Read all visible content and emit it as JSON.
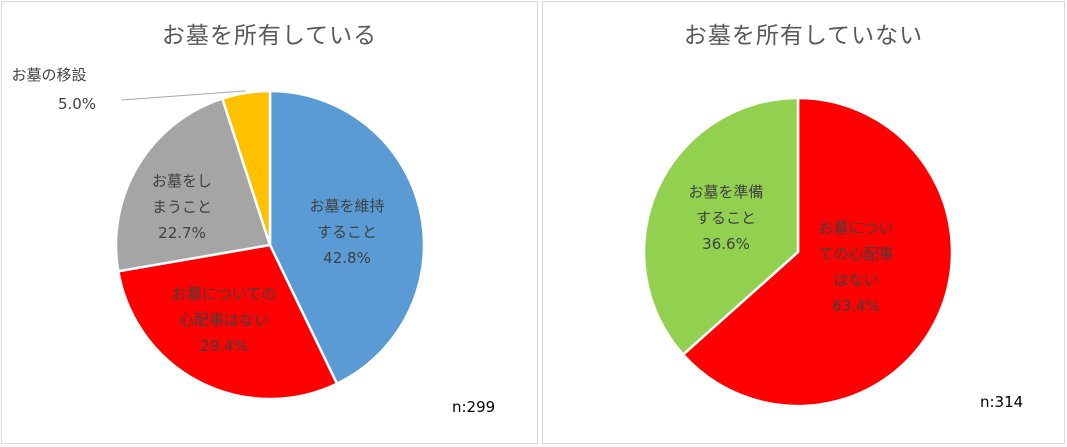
{
  "chart_data": [
    {
      "type": "pie",
      "title": "お墓を所有している",
      "n_label": "n:299",
      "start_angle_deg": 0,
      "direction": "clockwise",
      "slices": [
        {
          "lines": [
            "お墓を維持",
            "すること"
          ],
          "pct_label": "42.8%",
          "value": 42.8,
          "color": "#5b9bd5"
        },
        {
          "lines": [
            "お墓についての",
            "心配事はない"
          ],
          "pct_label": "29.4%",
          "value": 29.4,
          "color": "#ff0000"
        },
        {
          "lines": [
            "お墓をし",
            "まうこと"
          ],
          "pct_label": "22.7%",
          "value": 22.7,
          "color": "#a5a5a5"
        },
        {
          "lines": [
            "お墓の移設"
          ],
          "pct_label": "5.0%",
          "value": 5.0,
          "color": "#ffc000",
          "outside_label": true
        }
      ]
    },
    {
      "type": "pie",
      "title": "お墓を所有していない",
      "n_label": "n:314",
      "start_angle_deg": 0,
      "direction": "clockwise",
      "slices": [
        {
          "lines": [
            "お墓につい",
            "ての心配事",
            "はない"
          ],
          "pct_label": "63.4%",
          "value": 63.4,
          "color": "#ff0000"
        },
        {
          "lines": [
            "お墓を準備",
            "すること"
          ],
          "pct_label": "36.6%",
          "value": 36.6,
          "color": "#92d050"
        }
      ]
    }
  ]
}
